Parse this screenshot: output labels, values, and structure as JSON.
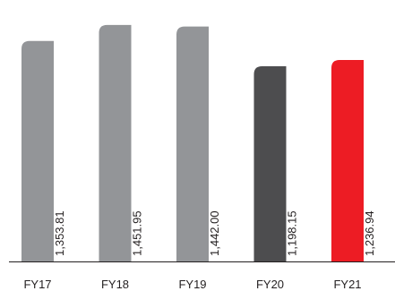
{
  "chart_data": {
    "type": "bar",
    "title": "",
    "xlabel": "",
    "ylabel": "",
    "categories": [
      "FY17",
      "FY18",
      "FY19",
      "FY20",
      "FY21"
    ],
    "values": [
      1353.81,
      1451.95,
      1442.0,
      1198.15,
      1236.94
    ],
    "value_labels": [
      "1,353.81",
      "1,451.95",
      "1,442.00",
      "1,198.15",
      "1,236.94"
    ],
    "ylim": [
      0,
      1550
    ],
    "grid": false,
    "legend": "none",
    "bar_colors": [
      "#939598",
      "#939598",
      "#939598",
      "#4d4d4f",
      "#ed1c24"
    ],
    "axis_color": "#231f20"
  }
}
